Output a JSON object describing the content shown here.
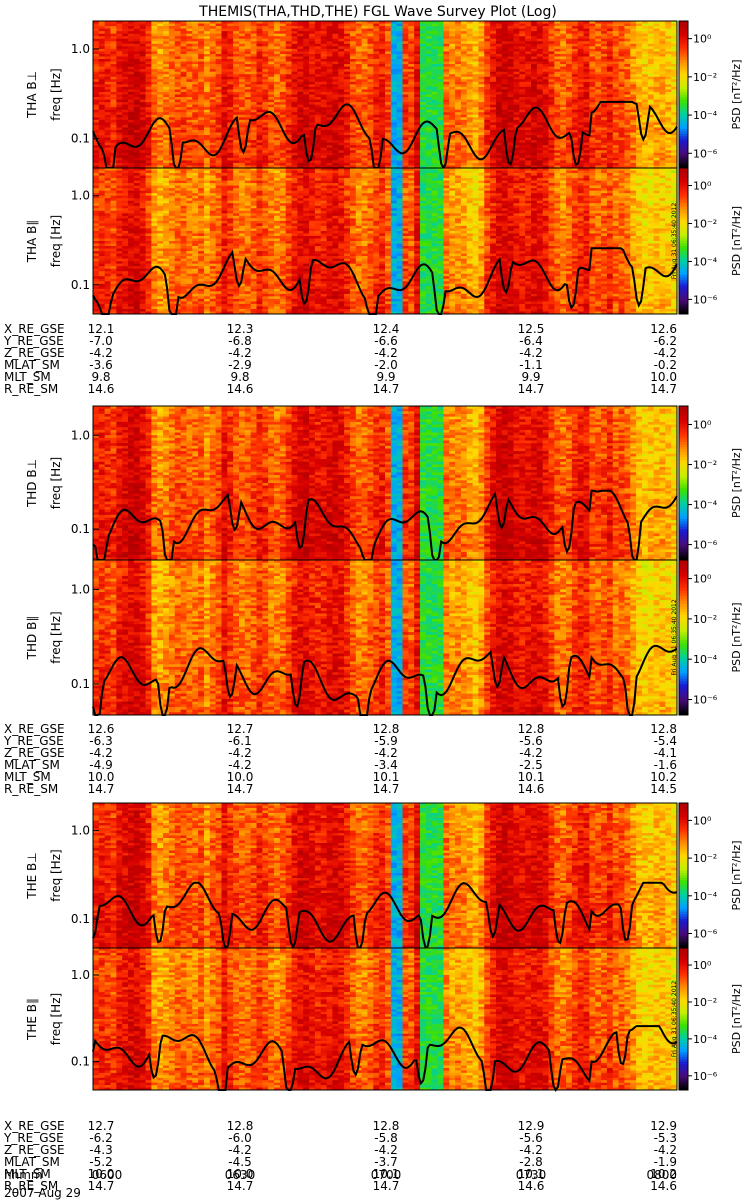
{
  "chart_data": {
    "type": "heatmap",
    "title": "THEMIS(THA,THD,THE) FGL Wave Survey Plot (Log)",
    "colorbar_label": "PSD [nT²/Hz]",
    "colorbar_ticks": [
      "10⁰",
      "10⁻²",
      "10⁻⁴",
      "10⁻⁶"
    ],
    "colorbar_exponents": [
      0,
      -2,
      -4,
      -6
    ],
    "ylabel": "freq [Hz]",
    "y_scale": "log",
    "y_tick_labels": [
      "1.0",
      "0.1"
    ],
    "y_tick_values": [
      1.0,
      0.1
    ],
    "time_ticks": [
      "0600",
      "0630",
      "0700",
      "0730",
      "0800"
    ],
    "time_ticks_label": "hhmm",
    "date_label": "2007 Aug 29",
    "side_stamp": "Fri Aug 31 06:35:40 2012",
    "panels": [
      {
        "name": "THA B⊥",
        "probe": "THA",
        "component": "perp"
      },
      {
        "name": "THA B∥",
        "probe": "THA",
        "component": "par"
      },
      {
        "name": "THD B⊥",
        "probe": "THD",
        "component": "perp"
      },
      {
        "name": "THD B∥",
        "probe": "THD",
        "component": "par"
      },
      {
        "name": "THE B⊥",
        "probe": "THE",
        "component": "perp"
      },
      {
        "name": "THE B∥",
        "probe": "THE",
        "component": "par"
      }
    ],
    "ephemeris": [
      {
        "probe": "THA",
        "rows": [
          {
            "label": "X_RE_GSE",
            "values": [
              "12.1",
              "12.3",
              "12.4",
              "12.5",
              "12.6"
            ]
          },
          {
            "label": "Y_RE_GSE",
            "values": [
              "-7.0",
              "-6.8",
              "-6.6",
              "-6.4",
              "-6.2"
            ]
          },
          {
            "label": "Z_RE_GSE",
            "values": [
              "-4.2",
              "-4.2",
              "-4.2",
              "-4.2",
              "-4.2"
            ]
          },
          {
            "label": "MLAT_SM",
            "values": [
              "-3.6",
              "-2.9",
              "-2.0",
              "-1.1",
              "-0.2"
            ]
          },
          {
            "label": "MLT_SM",
            "values": [
              "9.8",
              "9.8",
              "9.9",
              "9.9",
              "10.0"
            ]
          },
          {
            "label": "R_RE_SM",
            "values": [
              "14.6",
              "14.6",
              "14.7",
              "14.7",
              "14.7"
            ]
          }
        ]
      },
      {
        "probe": "THD",
        "rows": [
          {
            "label": "X_RE_GSE",
            "values": [
              "12.6",
              "12.7",
              "12.8",
              "12.8",
              "12.8"
            ]
          },
          {
            "label": "Y_RE_GSE",
            "values": [
              "-6.3",
              "-6.1",
              "-5.9",
              "-5.6",
              "-5.4"
            ]
          },
          {
            "label": "Z_RE_GSE",
            "values": [
              "-4.2",
              "-4.2",
              "-4.2",
              "-4.2",
              "-4.1"
            ]
          },
          {
            "label": "MLAT_SM",
            "values": [
              "-4.9",
              "-4.2",
              "-3.4",
              "-2.5",
              "-1.6"
            ]
          },
          {
            "label": "MLT_SM",
            "values": [
              "10.0",
              "10.0",
              "10.1",
              "10.1",
              "10.2"
            ]
          },
          {
            "label": "R_RE_SM",
            "values": [
              "14.7",
              "14.7",
              "14.7",
              "14.6",
              "14.5"
            ]
          }
        ]
      },
      {
        "probe": "THE",
        "rows": [
          {
            "label": "X_RE_GSE",
            "values": [
              "12.7",
              "12.8",
              "12.8",
              "12.9",
              "12.9"
            ]
          },
          {
            "label": "Y_RE_GSE",
            "values": [
              "-6.2",
              "-6.0",
              "-5.8",
              "-5.6",
              "-5.3"
            ]
          },
          {
            "label": "Z_RE_GSE",
            "values": [
              "-4.3",
              "-4.2",
              "-4.2",
              "-4.2",
              "-4.2"
            ]
          },
          {
            "label": "MLAT_SM",
            "values": [
              "-5.2",
              "-4.5",
              "-3.7",
              "-2.8",
              "-1.9"
            ]
          },
          {
            "label": "MLT_SM",
            "values": [
              "10.0",
              "10.0",
              "10.1",
              "10.1",
              "10.2"
            ]
          },
          {
            "label": "R_RE_SM",
            "values": [
              "14.7",
              "14.7",
              "14.7",
              "14.6",
              "14.6"
            ]
          }
        ]
      }
    ],
    "colormap": [
      "#000000",
      "#4a0a7a",
      "#1a1ad0",
      "#00a0ff",
      "#00d0a0",
      "#40e000",
      "#c8ee00",
      "#ffd800",
      "#ff8c00",
      "#ff3000",
      "#d80000",
      "#b00000"
    ],
    "cell_fill_color": "#ff4a1a"
  }
}
